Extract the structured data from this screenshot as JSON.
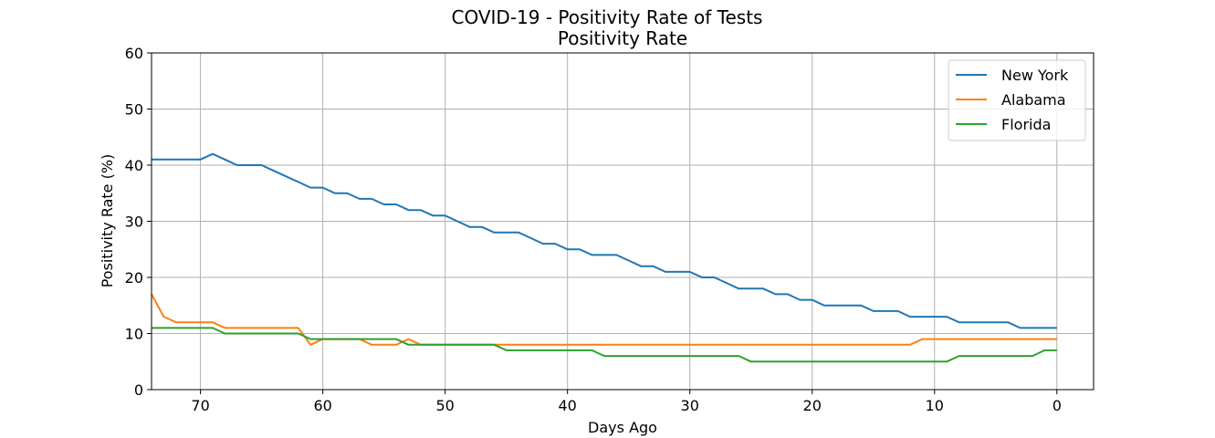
{
  "chart_data": {
    "type": "line",
    "title": "COVID-19 - Positivity Rate of Tests",
    "subtitle": "Positivity Rate",
    "xlabel": "Days Ago",
    "ylabel": "Positivity Rate (%)",
    "xlim": [
      74,
      -3
    ],
    "ylim": [
      0,
      60
    ],
    "x_ticks": [
      70,
      60,
      50,
      40,
      30,
      20,
      10,
      0
    ],
    "y_ticks": [
      0,
      10,
      20,
      30,
      40,
      50,
      60
    ],
    "grid": true,
    "legend_position": "top-right",
    "x": [
      74,
      73,
      72,
      71,
      70,
      69,
      68,
      67,
      66,
      65,
      64,
      63,
      62,
      61,
      60,
      59,
      58,
      57,
      56,
      55,
      54,
      53,
      52,
      51,
      50,
      49,
      48,
      47,
      46,
      45,
      44,
      43,
      42,
      41,
      40,
      39,
      38,
      37,
      36,
      35,
      34,
      33,
      32,
      31,
      30,
      29,
      28,
      27,
      26,
      25,
      24,
      23,
      22,
      21,
      20,
      19,
      18,
      17,
      16,
      15,
      14,
      13,
      12,
      11,
      10,
      9,
      8,
      7,
      6,
      5,
      4,
      3,
      2,
      1,
      0
    ],
    "series": [
      {
        "name": "New York",
        "color": "#1f77b4",
        "values": [
          41,
          41,
          41,
          41,
          41,
          42,
          41,
          40,
          40,
          40,
          39,
          38,
          37,
          36,
          36,
          35,
          35,
          34,
          34,
          33,
          33,
          32,
          32,
          31,
          31,
          30,
          29,
          29,
          28,
          28,
          28,
          27,
          26,
          26,
          25,
          25,
          24,
          24,
          24,
          23,
          22,
          22,
          21,
          21,
          21,
          20,
          20,
          19,
          18,
          18,
          18,
          17,
          17,
          16,
          16,
          15,
          15,
          15,
          15,
          14,
          14,
          14,
          13,
          13,
          13,
          13,
          12,
          12,
          12,
          12,
          12,
          11,
          11,
          11,
          11
        ]
      },
      {
        "name": "Alabama",
        "color": "#ff7f0e",
        "values": [
          17,
          13,
          12,
          12,
          12,
          12,
          11,
          11,
          11,
          11,
          11,
          11,
          11,
          8,
          9,
          9,
          9,
          9,
          8,
          8,
          8,
          9,
          8,
          8,
          8,
          8,
          8,
          8,
          8,
          8,
          8,
          8,
          8,
          8,
          8,
          8,
          8,
          8,
          8,
          8,
          8,
          8,
          8,
          8,
          8,
          8,
          8,
          8,
          8,
          8,
          8,
          8,
          8,
          8,
          8,
          8,
          8,
          8,
          8,
          8,
          8,
          8,
          8,
          9,
          9,
          9,
          9,
          9,
          9,
          9,
          9,
          9,
          9,
          9,
          9
        ]
      },
      {
        "name": "Florida",
        "color": "#2ca02c",
        "values": [
          11,
          11,
          11,
          11,
          11,
          11,
          10,
          10,
          10,
          10,
          10,
          10,
          10,
          9,
          9,
          9,
          9,
          9,
          9,
          9,
          9,
          8,
          8,
          8,
          8,
          8,
          8,
          8,
          8,
          7,
          7,
          7,
          7,
          7,
          7,
          7,
          7,
          6,
          6,
          6,
          6,
          6,
          6,
          6,
          6,
          6,
          6,
          6,
          6,
          5,
          5,
          5,
          5,
          5,
          5,
          5,
          5,
          5,
          5,
          5,
          5,
          5,
          5,
          5,
          5,
          5,
          6,
          6,
          6,
          6,
          6,
          6,
          6,
          7,
          7
        ]
      }
    ]
  }
}
